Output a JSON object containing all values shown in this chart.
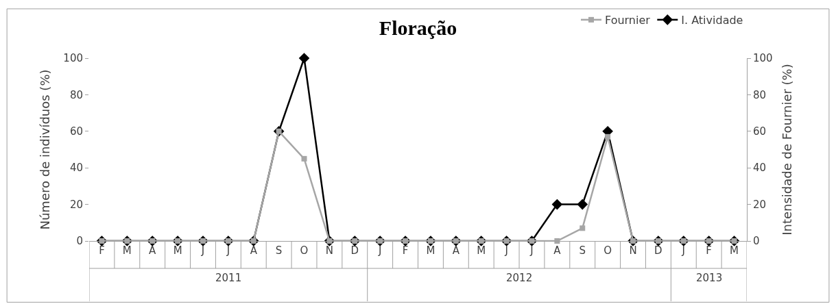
{
  "chart_data": {
    "type": "line",
    "title": "Floração",
    "ylabel": "Número de indivíduos (%)",
    "y2label": "Intensidade de Fournier (%)",
    "categories": [
      "F",
      "M",
      "A",
      "M",
      "J",
      "J",
      "A",
      "S",
      "O",
      "N",
      "D",
      "J",
      "F",
      "M",
      "A",
      "M",
      "J",
      "J",
      "A",
      "S",
      "O",
      "N",
      "D",
      "J",
      "F",
      "M"
    ],
    "series": [
      {
        "name": "Fournier",
        "color": "#a6a6a6",
        "marker": "square",
        "axis": "y2",
        "values": [
          0,
          0,
          0,
          0,
          0,
          0,
          0,
          60,
          45,
          0,
          0,
          0,
          0,
          0,
          0,
          0,
          0,
          0,
          0,
          7,
          57,
          0,
          0,
          0,
          0,
          0
        ]
      },
      {
        "name": "I. Atividade",
        "color": "#000000",
        "marker": "diamond",
        "axis": "y",
        "values": [
          0,
          0,
          0,
          0,
          0,
          0,
          0,
          60,
          100,
          0,
          0,
          0,
          0,
          0,
          0,
          0,
          0,
          0,
          20,
          20,
          60,
          0,
          0,
          0,
          0,
          0
        ]
      }
    ],
    "ylim": [
      0,
      100
    ],
    "yticks": [
      0,
      20,
      40,
      60,
      80,
      100
    ],
    "y2lim": [
      0,
      100
    ],
    "y2ticks": [
      0,
      20,
      40,
      60,
      80,
      100
    ],
    "annotations": [
      "2011",
      "2012",
      "2013"
    ],
    "legend": "top right",
    "line_style": "solid"
  }
}
